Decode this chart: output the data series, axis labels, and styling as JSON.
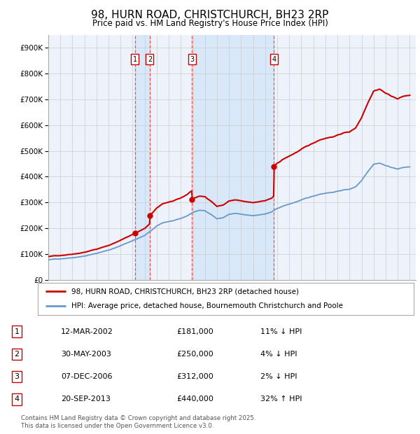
{
  "title": "98, HURN ROAD, CHRISTCHURCH, BH23 2RP",
  "subtitle": "Price paid vs. HM Land Registry's House Price Index (HPI)",
  "ylim": [
    0,
    950000
  ],
  "yticks": [
    0,
    100000,
    200000,
    300000,
    400000,
    500000,
    600000,
    700000,
    800000,
    900000
  ],
  "ytick_labels": [
    "£0",
    "£100K",
    "£200K",
    "£300K",
    "£400K",
    "£500K",
    "£600K",
    "£700K",
    "£800K",
    "£900K"
  ],
  "xlim_start": 1995.0,
  "xlim_end": 2025.5,
  "sale_dates": [
    2002.2,
    2003.42,
    2006.92,
    2013.72
  ],
  "sale_prices": [
    181000,
    250000,
    312000,
    440000
  ],
  "sale_labels": [
    "1",
    "2",
    "3",
    "4"
  ],
  "hpi_color": "#6699cc",
  "price_color": "#cc0000",
  "vline_color": "#ee5555",
  "grid_color": "#cccccc",
  "background_color": "#ffffff",
  "plot_bg_color": "#eef2fa",
  "shade_color": "#d8e8f8",
  "legend_label_price": "98, HURN ROAD, CHRISTCHURCH, BH23 2RP (detached house)",
  "legend_label_hpi": "HPI: Average price, detached house, Bournemouth Christchurch and Poole",
  "table_data": [
    [
      "1",
      "12-MAR-2002",
      "£181,000",
      "11% ↓ HPI"
    ],
    [
      "2",
      "30-MAY-2003",
      "£250,000",
      "4% ↓ HPI"
    ],
    [
      "3",
      "07-DEC-2006",
      "£312,000",
      "2% ↓ HPI"
    ],
    [
      "4",
      "20-SEP-2013",
      "£440,000",
      "32% ↑ HPI"
    ]
  ],
  "footer": "Contains HM Land Registry data © Crown copyright and database right 2025.\nThis data is licensed under the Open Government Licence v3.0.",
  "font_family": "DejaVu Sans",
  "hpi_knots": [
    [
      1995.0,
      78000
    ],
    [
      1996.0,
      82000
    ],
    [
      1997.0,
      88000
    ],
    [
      1998.0,
      95000
    ],
    [
      1999.0,
      105000
    ],
    [
      2000.0,
      118000
    ],
    [
      2001.0,
      135000
    ],
    [
      2002.0,
      155000
    ],
    [
      2002.5,
      165000
    ],
    [
      2003.0,
      175000
    ],
    [
      2003.5,
      192000
    ],
    [
      2004.0,
      210000
    ],
    [
      2004.5,
      223000
    ],
    [
      2005.0,
      228000
    ],
    [
      2005.5,
      232000
    ],
    [
      2006.0,
      238000
    ],
    [
      2006.5,
      248000
    ],
    [
      2007.0,
      262000
    ],
    [
      2007.5,
      270000
    ],
    [
      2008.0,
      268000
    ],
    [
      2008.5,
      255000
    ],
    [
      2009.0,
      238000
    ],
    [
      2009.5,
      242000
    ],
    [
      2010.0,
      255000
    ],
    [
      2010.5,
      258000
    ],
    [
      2011.0,
      254000
    ],
    [
      2011.5,
      250000
    ],
    [
      2012.0,
      248000
    ],
    [
      2012.5,
      252000
    ],
    [
      2013.0,
      255000
    ],
    [
      2013.5,
      262000
    ],
    [
      2014.0,
      275000
    ],
    [
      2014.5,
      285000
    ],
    [
      2015.0,
      292000
    ],
    [
      2015.5,
      300000
    ],
    [
      2016.0,
      308000
    ],
    [
      2016.5,
      315000
    ],
    [
      2017.0,
      322000
    ],
    [
      2017.5,
      330000
    ],
    [
      2018.0,
      335000
    ],
    [
      2018.5,
      338000
    ],
    [
      2019.0,
      342000
    ],
    [
      2019.5,
      348000
    ],
    [
      2020.0,
      350000
    ],
    [
      2020.5,
      360000
    ],
    [
      2021.0,
      385000
    ],
    [
      2021.5,
      420000
    ],
    [
      2022.0,
      450000
    ],
    [
      2022.5,
      455000
    ],
    [
      2023.0,
      445000
    ],
    [
      2023.5,
      438000
    ],
    [
      2024.0,
      432000
    ],
    [
      2024.5,
      438000
    ],
    [
      2025.0,
      440000
    ]
  ]
}
